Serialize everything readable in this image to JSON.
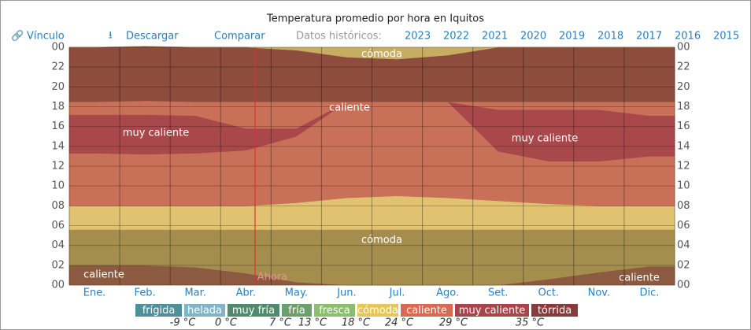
{
  "toolbar": {
    "link": "Vínculo",
    "download": "Descargar",
    "compare": "Comparar",
    "history": "Datos históricos:",
    "years": [
      "2023",
      "2022",
      "2021",
      "2020",
      "2019",
      "2018",
      "2017",
      "2016",
      "2015"
    ]
  },
  "chart_data": {
    "type": "area",
    "title": "Temperatura promedio por hora en Iquitos",
    "categories": [
      "Ene.",
      "Feb.",
      "Mar.",
      "Abr.",
      "May.",
      "Jun.",
      "Jul.",
      "Ago.",
      "Set.",
      "Oct.",
      "Nov.",
      "Dic."
    ],
    "ylim": [
      0,
      24
    ],
    "yticks": [
      {
        "value": 0,
        "label": "00"
      },
      {
        "value": 2,
        "label": "02"
      },
      {
        "value": 4,
        "label": "04"
      },
      {
        "value": 6,
        "label": "06"
      },
      {
        "value": 8,
        "label": "08"
      },
      10,
      12,
      14,
      16,
      18,
      20,
      22,
      {
        "value": 24,
        "label": "00"
      }
    ],
    "grid": true,
    "series": [
      {
        "color": "#8c5a41",
        "values": [
          2,
          2,
          1.8,
          1.2,
          0.3,
          0,
          0,
          0,
          0,
          0.6,
          1.3,
          1.9
        ]
      },
      {
        "color": "#a48d4d",
        "values": [
          3.6,
          3.6,
          3.8,
          4.4,
          5.3,
          5.6,
          5.6,
          5.6,
          5.6,
          5,
          4.3,
          3.7
        ]
      },
      {
        "color": "#e0c270",
        "values": [
          2.4,
          2.4,
          2.4,
          2.4,
          2.7,
          3.2,
          3.4,
          3.2,
          2.9,
          2.6,
          2.4,
          2.4
        ]
      },
      {
        "color": "#c87058",
        "values": [
          5.3,
          5.2,
          5.3,
          5.6,
          6.7,
          9.7,
          9.5,
          9.7,
          5,
          4.3,
          4.5,
          5
        ]
      },
      {
        "color": "#a9484a",
        "values": [
          3.9,
          4,
          3.8,
          2.2,
          0.8,
          0,
          0,
          0,
          4.2,
          5.2,
          5.2,
          4.1
        ]
      },
      {
        "color": "#c87058",
        "values": [
          1.3,
          1.4,
          1.4,
          2.7,
          2.7,
          0,
          0,
          0,
          0.8,
          0.8,
          0.8,
          1.4
        ]
      },
      {
        "color": "#8d4c3c",
        "values": [
          5.5,
          5.5,
          5.5,
          5.5,
          5.2,
          4.5,
          4.3,
          4.7,
          5.5,
          5.5,
          5.5,
          5.5
        ]
      },
      {
        "color": "#c7ad62",
        "values": [
          0,
          0,
          0,
          0,
          0.3,
          1,
          1.2,
          0.8,
          0,
          0,
          0,
          0
        ]
      }
    ],
    "annotations": [
      "cómoda",
      "caliente",
      "muy caliente",
      "muy caliente",
      "cómoda",
      "caliente",
      "caliente"
    ],
    "now_label": "Ahora",
    "legend": [
      {
        "label": "frígida",
        "color": "#4e8f9c"
      },
      {
        "label": "helada",
        "color": "#7fb5c9"
      },
      {
        "label": "muy fría",
        "color": "#4f8a6a"
      },
      {
        "label": "fría",
        "color": "#6aa06a"
      },
      {
        "label": "fresca",
        "color": "#8cbf6d"
      },
      {
        "label": "cómoda",
        "color": "#e8c55a"
      },
      {
        "label": "caliente",
        "color": "#d9694f"
      },
      {
        "label": "muy caliente",
        "color": "#a8454a"
      },
      {
        "label": "tórrida",
        "color": "#8a3a3a"
      }
    ],
    "thresholds": [
      "-9 °C",
      "0 °C",
      "7 °C",
      "13 °C",
      "18 °C",
      "24 °C",
      "29 °C",
      "35 °C"
    ]
  }
}
